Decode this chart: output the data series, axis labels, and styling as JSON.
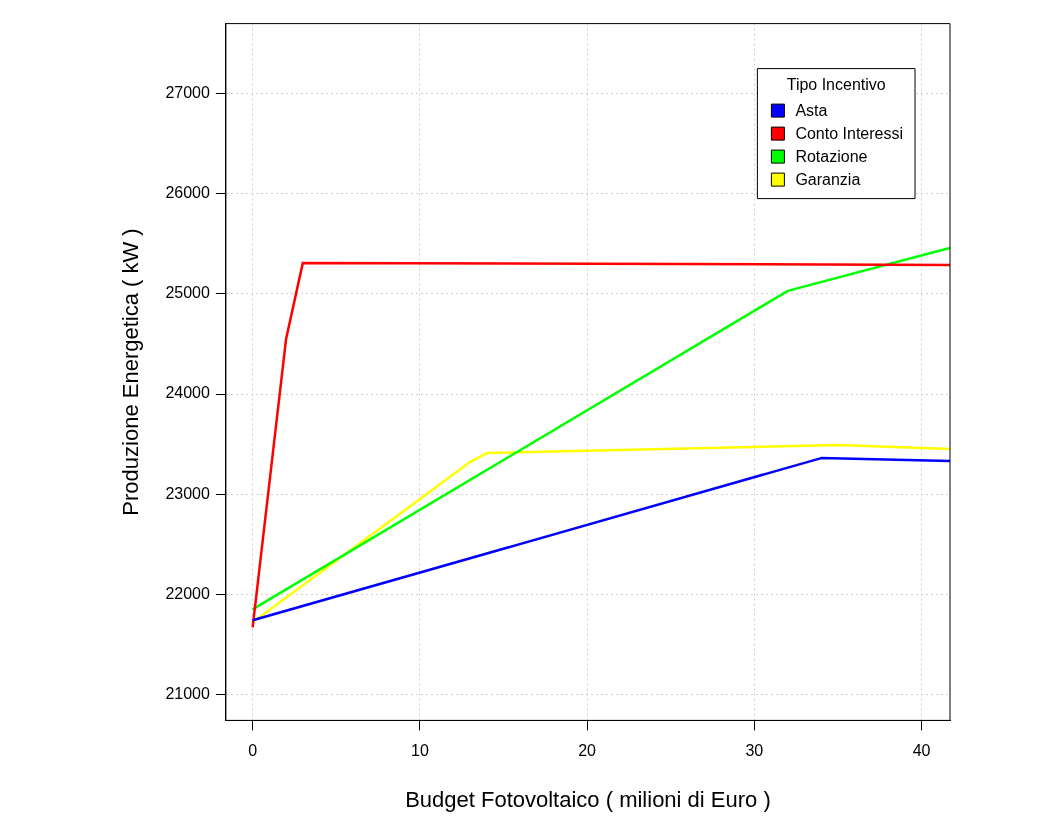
{
  "chart_data": {
    "type": "line",
    "xlabel": "Budget Fotovoltaico ( milioni di Euro )",
    "ylabel": "Produzione Energetica ( kW )",
    "legend_title": "Tipo Incentivo",
    "legend": "top right",
    "grid": true,
    "line_style": "solid",
    "marker": "none",
    "xlim": [
      -1.6,
      41.7
    ],
    "xticks": [
      0,
      10,
      20,
      30,
      40
    ],
    "ylim": [
      20740,
      27700
    ],
    "yticks": [
      21000,
      22000,
      23000,
      24000,
      25000,
      26000,
      27000
    ],
    "series": [
      {
        "name": "Asta",
        "color": "#0000ff",
        "x": [
          0,
          34,
          41.7
        ],
        "values": [
          21740,
          23360,
          23330
        ]
      },
      {
        "name": "Conto Interessi",
        "color": "#ff0000",
        "x": [
          0,
          2,
          3,
          41.7
        ],
        "values": [
          21670,
          24550,
          25310,
          25290
        ]
      },
      {
        "name": "Rotazione",
        "color": "#00ff00",
        "x": [
          0,
          32,
          41.7
        ],
        "values": [
          21850,
          25030,
          25460
        ]
      },
      {
        "name": "Garanzia",
        "color": "#ffff00",
        "x": [
          0,
          13,
          14,
          35,
          41.7
        ],
        "values": [
          21720,
          23320,
          23410,
          23490,
          23450
        ]
      }
    ]
  }
}
